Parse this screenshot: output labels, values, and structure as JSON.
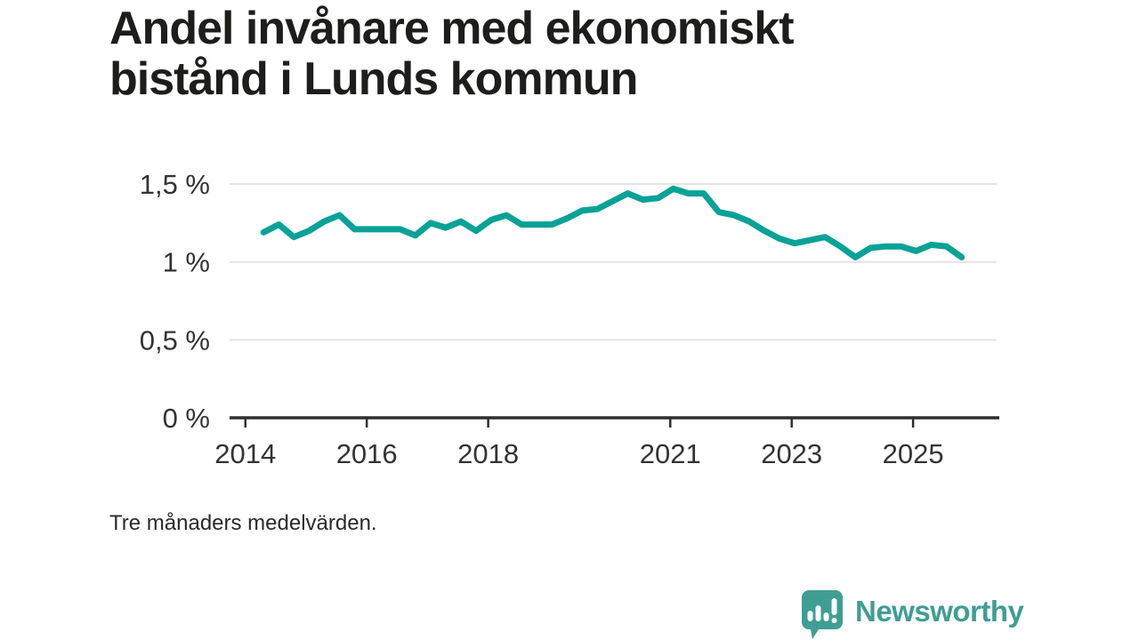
{
  "page": {
    "title_line1": "Andel invånare med ekonomiskt",
    "title_line2": "bistånd i Lunds kommun",
    "footnote": "Tre månaders medelvärden.",
    "brand": {
      "name": "Newsworthy",
      "color": "#3f9e94",
      "icon": "speech-bubble-with-bar-chart-and-exclamation"
    }
  },
  "chart_data": {
    "type": "line",
    "title": "Andel invånare med ekonomiskt bistånd i Lunds kommun",
    "note": "Tre månaders medelvärden.",
    "unit": "%",
    "xlabel": "",
    "ylabel": "",
    "xlim": [
      2013.74,
      2026.42
    ],
    "ylim": [
      0,
      1.5
    ],
    "grid": true,
    "legend": "none",
    "line_color": "#0aa296",
    "grid_color": "#e3e3e3",
    "axis_color": "#2f2f2f",
    "label_color": "#333333",
    "yticks": [
      {
        "value": 0,
        "label": "0 %"
      },
      {
        "value": 0.5,
        "label": "0,5 %"
      },
      {
        "value": 1,
        "label": "1 %"
      },
      {
        "value": 1.5,
        "label": "1,5 %"
      }
    ],
    "xticks": [
      {
        "value": 2014,
        "label": "2014"
      },
      {
        "value": 2016,
        "label": "2016"
      },
      {
        "value": 2018,
        "label": "2018"
      },
      {
        "value": 2021,
        "label": "2021"
      },
      {
        "value": 2023,
        "label": "2023"
      },
      {
        "value": 2025,
        "label": "2025"
      }
    ],
    "series": [
      {
        "name": "Andel invånare med ekonomiskt bistånd, Lunds kommun",
        "x": [
          2014.3,
          2014.55,
          2014.8,
          2015.05,
          2015.3,
          2015.55,
          2015.8,
          2016.05,
          2016.3,
          2016.55,
          2016.8,
          2017.05,
          2017.3,
          2017.55,
          2017.8,
          2018.05,
          2018.3,
          2018.55,
          2018.8,
          2019.05,
          2019.3,
          2019.55,
          2019.8,
          2020.05,
          2020.3,
          2020.55,
          2020.8,
          2021.05,
          2021.3,
          2021.55,
          2021.8,
          2022.05,
          2022.3,
          2022.55,
          2022.8,
          2023.05,
          2023.3,
          2023.55,
          2023.8,
          2024.05,
          2024.3,
          2024.55,
          2024.8,
          2025.05,
          2025.3,
          2025.55,
          2025.8
        ],
        "values": [
          1.19,
          1.24,
          1.16,
          1.2,
          1.26,
          1.3,
          1.21,
          1.21,
          1.21,
          1.21,
          1.17,
          1.25,
          1.22,
          1.26,
          1.2,
          1.27,
          1.3,
          1.24,
          1.24,
          1.24,
          1.28,
          1.33,
          1.34,
          1.39,
          1.44,
          1.4,
          1.41,
          1.47,
          1.44,
          1.44,
          1.32,
          1.3,
          1.26,
          1.2,
          1.15,
          1.12,
          1.14,
          1.16,
          1.1,
          1.03,
          1.09,
          1.1,
          1.1,
          1.07,
          1.11,
          1.1,
          1.03
        ]
      }
    ]
  }
}
